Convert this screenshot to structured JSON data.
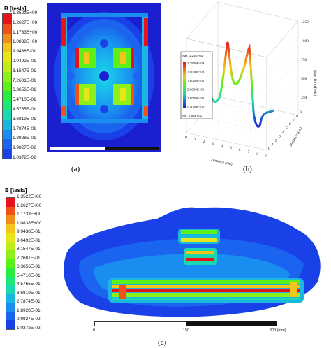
{
  "panel_a": {
    "caption": "(a)",
    "legend_title": "B [tesla]",
    "legend_ticks": [
      "1.3522E+00",
      "1.2627E+00",
      "1.1733E+00",
      "1.0838E+00",
      "9.9438E-01",
      "9.0492E-01",
      "8.1547E-01",
      "7.2601E-01",
      "6.3656E-01",
      "5.4710E-01",
      "4.5765E-01",
      "3.6819E-01",
      "2.7874E-01",
      "1.8928E-01",
      "9.9827E-02",
      "1.0372E-02"
    ],
    "colors": [
      "#e8121a",
      "#f0501a",
      "#f08c1a",
      "#f4c41a",
      "#e6e61a",
      "#c0ec1a",
      "#8ef01a",
      "#5cf01a",
      "#28ec40",
      "#1ae878",
      "#1ad8b0",
      "#1ab8e0",
      "#1a8ef0",
      "#1a64f0",
      "#1a40e8",
      "#1a20d8"
    ]
  },
  "panel_b": {
    "caption": "(b)",
    "legend_top": "Max: 1.25E+03",
    "legend_bottom": "Min: 2.83E+01",
    "legend_entries": [
      "1.2500E+03",
      "1.0000E+03",
      "7.5000E+02",
      "5.0000E+02",
      "2.5000E+02",
      "0.0000E+00"
    ],
    "z_ticks": [
      "1250",
      "1000",
      "750",
      "500",
      "250"
    ],
    "z_label": "Mag_B (mTesla)",
    "x_label": "Distance (cm)",
    "y_label": "Distance (cm)",
    "x_ticks": [
      "0",
      "1",
      "2",
      "3",
      "4",
      "5",
      "6",
      "7",
      "8",
      "9"
    ],
    "y_ticks": [
      "0",
      "1",
      "2",
      "3",
      "4",
      "5",
      "6",
      "7",
      "8",
      "9"
    ]
  },
  "panel_c": {
    "caption": "(c)",
    "legend_title": "B [tesla]",
    "legend_ticks": [
      "1.3522E+00",
      "1.2627E+00",
      "1.1733E+00",
      "1.0838E+00",
      "9.9438E-01",
      "9.0492E-01",
      "8.1547E-01",
      "7.2601E-01",
      "6.3656E-01",
      "5.4710E-01",
      "4.5765E-01",
      "3.6819E-01",
      "2.7874E-01",
      "1.8928E-01",
      "9.9827E-02",
      "1.0372E-02"
    ],
    "scale_labels": [
      "0",
      "150",
      "300 (mm)"
    ]
  }
}
